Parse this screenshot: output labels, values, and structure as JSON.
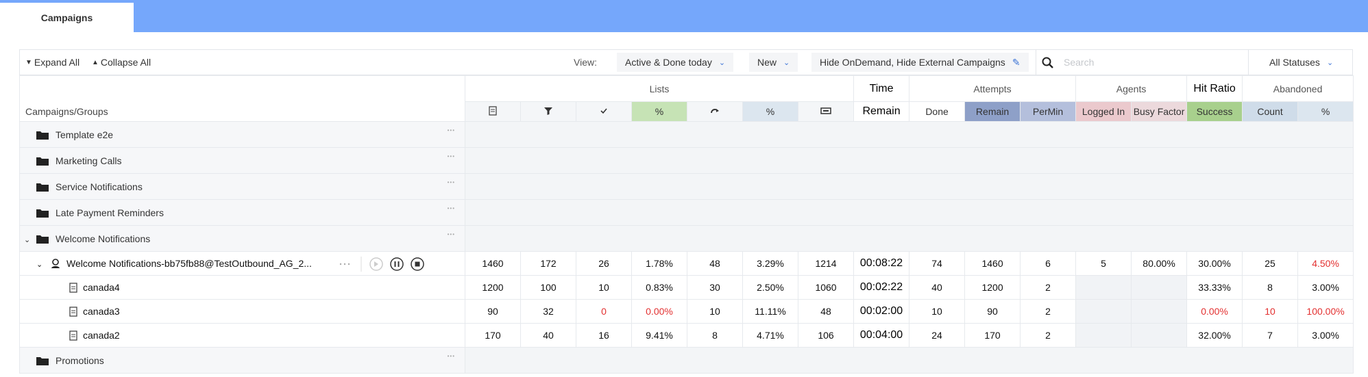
{
  "tab": "Campaigns",
  "toolbar": {
    "expand_all": "Expand All",
    "collapse_all": "Collapse All",
    "view_label": "View:",
    "view": "Active & Done today",
    "new": "New",
    "filter": "Hide OnDemand, Hide External Campaigns",
    "search_placeholder": "Search",
    "status": "All Statuses"
  },
  "table": {
    "name_header": "Campaigns/Groups",
    "column_groups": [
      "Lists",
      "Time",
      "Attempts",
      "Agents",
      "Hit Ratio",
      "Abandoned"
    ],
    "columns": [
      null,
      null,
      null,
      "%",
      null,
      "%",
      null,
      "Remain",
      "Done",
      "Remain",
      "PerMin",
      "Logged In",
      "Busy Factor",
      "Success",
      "Count",
      "%"
    ],
    "groups": [
      "Template e2e",
      "Marketing Calls",
      "Service Notifications",
      "Late Payment Reminders",
      "Welcome Notifications"
    ],
    "campaign": {
      "name": "Welcome Notifications-bb75fb88@TestOutbound_AG_2...",
      "cells": [
        "1460",
        "172",
        "26",
        "1.78%",
        "48",
        "3.29%",
        "1214",
        "00:08:22",
        "74",
        "1460",
        "6",
        "5",
        "80.00%",
        "30.00%",
        "25",
        "4.50%"
      ]
    },
    "lists": [
      {
        "name": "canada4",
        "cells": [
          "1200",
          "100",
          "10",
          "0.83%",
          "30",
          "2.50%",
          "1060",
          "00:02:22",
          "40",
          "1200",
          "2",
          null,
          null,
          "33.33%",
          "8",
          "3.00%"
        ]
      },
      {
        "name": "canada3",
        "cells": [
          "90",
          "32",
          "0",
          "0.00%",
          "10",
          "11.11%",
          "48",
          "00:02:00",
          "10",
          "90",
          "2",
          null,
          null,
          "0.00%",
          "10",
          "100.00%"
        ]
      },
      {
        "name": "canada2",
        "cells": [
          "170",
          "40",
          "16",
          "9.41%",
          "8",
          "4.71%",
          "106",
          "00:04:00",
          "24",
          "170",
          "2",
          null,
          null,
          "32.00%",
          "7",
          "3.00%"
        ]
      }
    ],
    "groups_after": [
      "Promotions"
    ]
  }
}
